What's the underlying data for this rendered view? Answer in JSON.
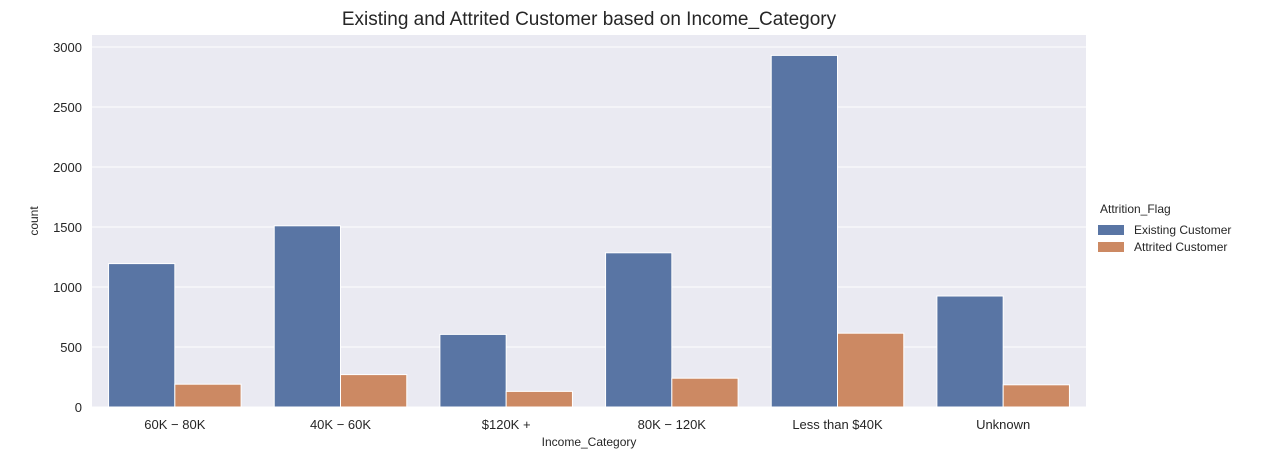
{
  "chart_data": {
    "type": "bar",
    "title": "Existing and Attrited Customer based on Income_Category",
    "xlabel": "Income_Category",
    "ylabel": "count",
    "categories": [
      "$60K - $80K",
      "$40K - $60K",
      "$120K +",
      "$80K - $120K",
      "Less than $40K",
      "Unknown"
    ],
    "category_labels": [
      "60K − 80K",
      "40K − 60K",
      "$120K +",
      "80K − 120K",
      "Less than $40K",
      "Unknown"
    ],
    "series": [
      {
        "name": "Existing Customer",
        "color": "#5975a4",
        "values": [
          1195,
          1510,
          605,
          1285,
          2930,
          925
        ]
      },
      {
        "name": "Attrited Customer",
        "color": "#cc8963",
        "values": [
          190,
          270,
          130,
          240,
          615,
          185
        ]
      }
    ],
    "ylim": [
      0,
      3100
    ],
    "yticks": [
      0,
      500,
      1000,
      1500,
      2000,
      2500,
      3000
    ],
    "grid": true,
    "background_color": "#eaeaf2",
    "legend": {
      "title": "Attrition_Flag",
      "placement": "right"
    }
  }
}
